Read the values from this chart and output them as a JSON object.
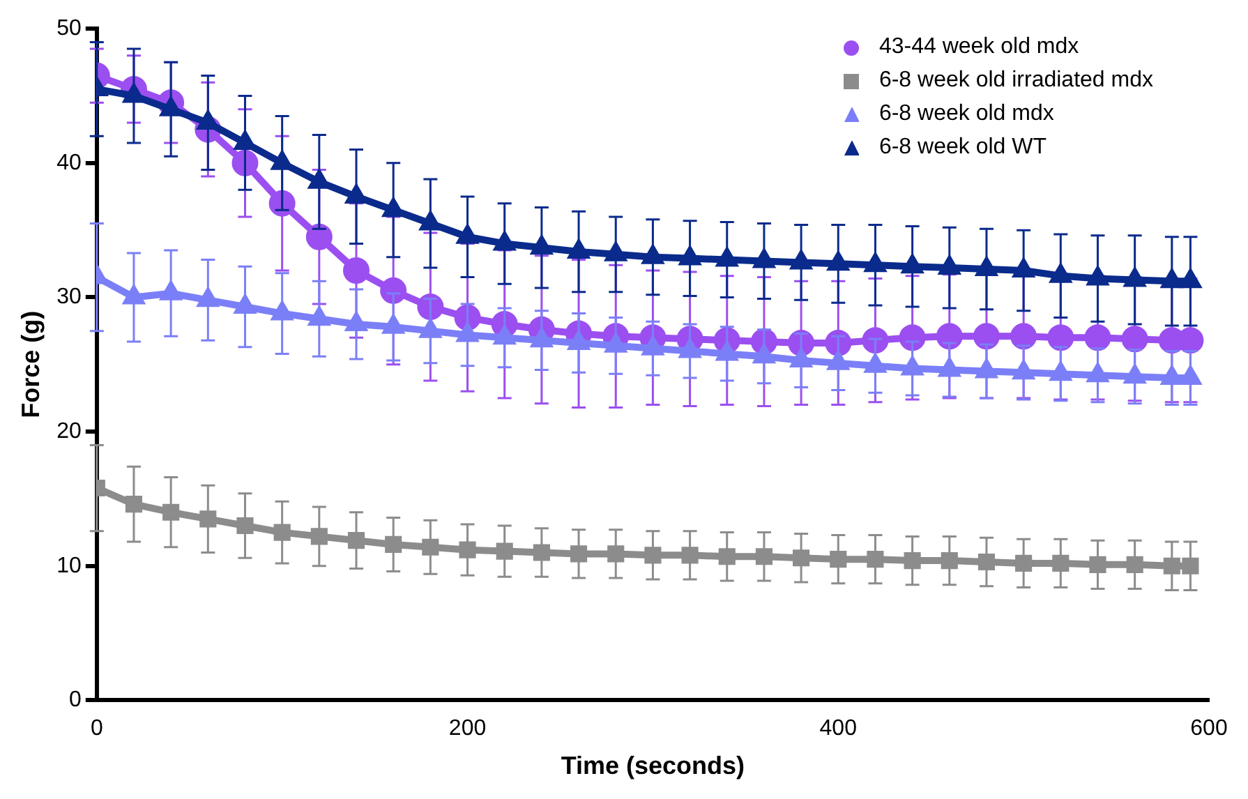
{
  "chart_data": {
    "type": "line",
    "xlabel": "Time (seconds)",
    "ylabel": "Force (g)",
    "x": [
      0,
      20,
      40,
      60,
      80,
      100,
      120,
      140,
      160,
      180,
      200,
      220,
      240,
      260,
      280,
      300,
      320,
      340,
      360,
      380,
      400,
      420,
      440,
      460,
      480,
      500,
      520,
      540,
      560,
      580,
      590
    ],
    "xlim": [
      0,
      600
    ],
    "xticks": [
      0,
      200,
      400,
      600
    ],
    "ylim": [
      0,
      50
    ],
    "yticks": [
      0,
      10,
      20,
      30,
      40,
      50
    ],
    "grid": false,
    "legend": "top right",
    "line_style": "solid",
    "series": [
      {
        "name": "43-44 week old mdx",
        "color": "#9b4ff0",
        "marker": "circle",
        "values": [
          46.5,
          45.5,
          44.5,
          42.5,
          40,
          37,
          34.5,
          32,
          30.5,
          29.3,
          28.5,
          28,
          27.6,
          27.3,
          27.1,
          27,
          26.9,
          26.8,
          26.7,
          26.6,
          26.6,
          26.8,
          27,
          27.1,
          27.1,
          27.1,
          27,
          27,
          26.9,
          26.8,
          26.8
        ],
        "errors": [
          2,
          2.5,
          3,
          3.5,
          4,
          5,
          5,
          5,
          5.5,
          5.5,
          5.5,
          5.5,
          5.5,
          5.5,
          5.3,
          5,
          5,
          4.8,
          4.8,
          4.6,
          4.6,
          4.6,
          4.6,
          4.6,
          4.6,
          4.6,
          4.6,
          4.6,
          4.6,
          4.6,
          4.6
        ]
      },
      {
        "name": "6-8 week old irradiated mdx",
        "color": "#8c8c8c",
        "marker": "square",
        "values": [
          15.8,
          14.6,
          14,
          13.5,
          13,
          12.5,
          12.2,
          11.9,
          11.6,
          11.4,
          11.2,
          11.1,
          11,
          10.9,
          10.9,
          10.8,
          10.8,
          10.7,
          10.7,
          10.6,
          10.5,
          10.5,
          10.4,
          10.4,
          10.3,
          10.2,
          10.2,
          10.1,
          10.1,
          10,
          10
        ],
        "errors": [
          3.2,
          2.8,
          2.6,
          2.5,
          2.4,
          2.3,
          2.2,
          2.1,
          2,
          2,
          1.9,
          1.9,
          1.8,
          1.8,
          1.8,
          1.8,
          1.8,
          1.8,
          1.8,
          1.8,
          1.8,
          1.8,
          1.8,
          1.8,
          1.8,
          1.8,
          1.8,
          1.8,
          1.8,
          1.8,
          1.8
        ]
      },
      {
        "name": "6-8 week old mdx",
        "color": "#7b7ff7",
        "marker": "triangle",
        "values": [
          31.5,
          30,
          30.3,
          29.8,
          29.3,
          28.8,
          28.4,
          28,
          27.8,
          27.5,
          27.2,
          27,
          26.8,
          26.6,
          26.4,
          26.2,
          26,
          25.8,
          25.6,
          25.3,
          25.1,
          24.9,
          24.7,
          24.6,
          24.5,
          24.4,
          24.3,
          24.2,
          24.1,
          24,
          24
        ],
        "errors": [
          4,
          3.3,
          3.2,
          3,
          3,
          3,
          2.8,
          2.6,
          2.5,
          2.4,
          2.3,
          2.2,
          2.2,
          2.2,
          2.1,
          2,
          2,
          2,
          2,
          2,
          2,
          2,
          2,
          2,
          2,
          2,
          2,
          2,
          2,
          2,
          2
        ]
      },
      {
        "name": "6-8 week old WT",
        "color": "#0a2a8c",
        "marker": "triangle",
        "values": [
          45.5,
          45,
          44,
          43,
          41.5,
          40,
          38.6,
          37.5,
          36.5,
          35.5,
          34.5,
          34,
          33.7,
          33.4,
          33.2,
          33,
          32.9,
          32.8,
          32.7,
          32.6,
          32.5,
          32.4,
          32.3,
          32.2,
          32.1,
          32,
          31.6,
          31.4,
          31.3,
          31.2,
          31.2
        ],
        "errors": [
          3.5,
          3.5,
          3.5,
          3.5,
          3.5,
          3.5,
          3.5,
          3.5,
          3.5,
          3.3,
          3,
          3,
          3,
          3,
          2.8,
          2.8,
          2.8,
          2.8,
          2.8,
          2.8,
          2.9,
          3,
          3,
          3,
          3,
          3,
          3.1,
          3.2,
          3.3,
          3.3,
          3.3
        ]
      }
    ]
  }
}
